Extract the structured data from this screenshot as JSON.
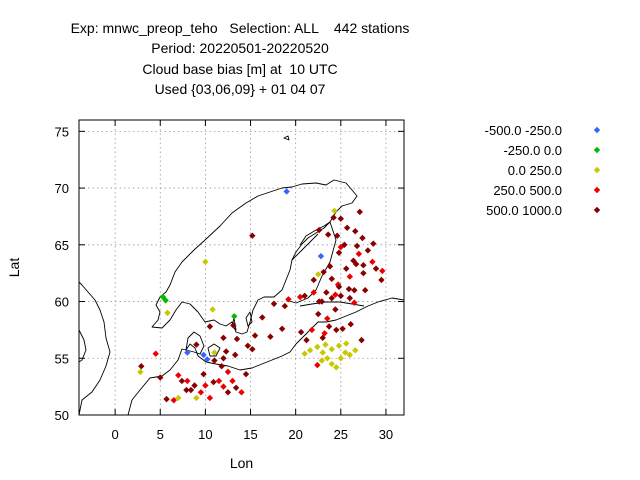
{
  "titles": [
    "Exp: mnwc_preop_teho   Selection: ALL    442 stations",
    "Period: 20220501-20220520",
    "Cloud base bias [m] at  10 UTC",
    "Used {03,06,09} + 01 04 07"
  ],
  "chart_data": {
    "type": "scatter",
    "xlabel": "Lon",
    "ylabel": "Lat",
    "xlim": [
      -4,
      32
    ],
    "ylim": [
      50,
      76
    ],
    "x_ticks": [
      0,
      5,
      10,
      15,
      20,
      25,
      30
    ],
    "y_ticks": [
      50,
      55,
      60,
      65,
      70,
      75
    ],
    "grid": true,
    "legend_position": "right",
    "series": [
      {
        "name": "-500.0 -250.0",
        "color": "#3366ff",
        "points": [
          [
            19.0,
            69.7
          ],
          [
            8.0,
            55.5
          ],
          [
            9.8,
            55.3
          ],
          [
            10.2,
            54.9
          ],
          [
            22.8,
            64.0
          ]
        ]
      },
      {
        "name": "-250.0 0.0",
        "color": "#00bb00",
        "points": [
          [
            5.3,
            60.4
          ],
          [
            5.6,
            60.1
          ],
          [
            13.2,
            58.7
          ]
        ]
      },
      {
        "name": "0.0 250.0",
        "color": "#c8c800",
        "points": [
          [
            2.8,
            53.8
          ],
          [
            5.8,
            59.0
          ],
          [
            10.0,
            63.5
          ],
          [
            10.8,
            59.3
          ],
          [
            11.0,
            55.5
          ],
          [
            7.0,
            51.5
          ],
          [
            9.0,
            51.5
          ],
          [
            21.0,
            55.4
          ],
          [
            21.6,
            55.7
          ],
          [
            22.5,
            62.4
          ],
          [
            24.3,
            68.0
          ],
          [
            23.0,
            55.5
          ],
          [
            23.5,
            55.0
          ],
          [
            24.0,
            54.5
          ],
          [
            24.5,
            54.2
          ],
          [
            25.0,
            55.0
          ],
          [
            25.5,
            55.5
          ],
          [
            24.0,
            55.8
          ],
          [
            24.8,
            56.1
          ],
          [
            26.0,
            55.3
          ],
          [
            26.6,
            55.7
          ],
          [
            22.4,
            56.0
          ],
          [
            23.3,
            56.2
          ],
          [
            25.6,
            56.3
          ],
          [
            22.9,
            54.8
          ]
        ]
      },
      {
        "name": "250.0 500.0",
        "color": "#ee0000",
        "points": [
          [
            4.5,
            55.4
          ],
          [
            7.0,
            53.5
          ],
          [
            9.5,
            52.0
          ],
          [
            10.5,
            51.5
          ],
          [
            11.5,
            53.0
          ],
          [
            12.0,
            52.5
          ],
          [
            13.0,
            53.0
          ],
          [
            14.0,
            52.0
          ],
          [
            6.5,
            51.3
          ],
          [
            8.0,
            53.0
          ],
          [
            10.0,
            52.6
          ],
          [
            12.5,
            53.8
          ],
          [
            19.2,
            60.2
          ],
          [
            21.8,
            57.5
          ],
          [
            23.5,
            58.5
          ],
          [
            26.0,
            62.2
          ],
          [
            27.0,
            64.2
          ],
          [
            29.6,
            62.7
          ],
          [
            24.7,
            61.5
          ],
          [
            22.0,
            60.8
          ],
          [
            23.2,
            57.2
          ],
          [
            28.5,
            63.5
          ],
          [
            26.5,
            59.9
          ],
          [
            25.0,
            64.8
          ],
          [
            24.4,
            60.6
          ],
          [
            20.5,
            60.4
          ],
          [
            22.4,
            54.4
          ]
        ]
      },
      {
        "name": "500.0 1000.0",
        "color": "#880000",
        "points": [
          [
            2.9,
            54.3
          ],
          [
            5.0,
            53.3
          ],
          [
            5.7,
            51.4
          ],
          [
            7.4,
            53.0
          ],
          [
            7.9,
            52.2
          ],
          [
            8.8,
            52.6
          ],
          [
            9.8,
            53.6
          ],
          [
            10.9,
            52.9
          ],
          [
            11.8,
            54.3
          ],
          [
            12.5,
            52.0
          ],
          [
            13.4,
            52.4
          ],
          [
            14.5,
            53.6
          ],
          [
            15.2,
            55.8
          ],
          [
            15.5,
            57.0
          ],
          [
            15.2,
            65.8
          ],
          [
            10.5,
            57.8
          ],
          [
            12.0,
            56.8
          ],
          [
            12.3,
            55.6
          ],
          [
            13.3,
            55.3
          ],
          [
            13.5,
            56.7
          ],
          [
            9.0,
            56.2
          ],
          [
            8.4,
            52.2
          ],
          [
            21.0,
            60.5
          ],
          [
            22.0,
            61.9
          ],
          [
            22.6,
            60.0
          ],
          [
            23.4,
            60.8
          ],
          [
            24.0,
            60.3
          ],
          [
            25.0,
            60.5
          ],
          [
            25.9,
            61.1
          ],
          [
            26.5,
            61.0
          ],
          [
            27.7,
            61.0
          ],
          [
            27.5,
            62.5
          ],
          [
            28.9,
            62.9
          ],
          [
            29.5,
            61.9
          ],
          [
            28.0,
            64.5
          ],
          [
            27.4,
            65.6
          ],
          [
            26.6,
            66.2
          ],
          [
            25.7,
            66.5
          ],
          [
            25.4,
            65.0
          ],
          [
            24.6,
            65.8
          ],
          [
            23.6,
            65.9
          ],
          [
            24.8,
            64.3
          ],
          [
            26.4,
            63.6
          ],
          [
            25.6,
            62.9
          ],
          [
            23.8,
            63.1
          ],
          [
            23.1,
            62.6
          ],
          [
            24.0,
            62.0
          ],
          [
            22.6,
            66.3
          ],
          [
            25.0,
            67.3
          ],
          [
            27.1,
            67.9
          ],
          [
            26.7,
            63.3
          ],
          [
            27.5,
            63.2
          ],
          [
            24.8,
            61.3
          ],
          [
            26.0,
            60.3
          ],
          [
            22.9,
            60.0
          ],
          [
            24.4,
            59.3
          ],
          [
            22.5,
            58.9
          ],
          [
            23.7,
            57.8
          ],
          [
            24.5,
            57.5
          ],
          [
            25.2,
            57.6
          ],
          [
            23.0,
            56.8
          ],
          [
            21.2,
            56.6
          ],
          [
            20.6,
            57.3
          ],
          [
            18.5,
            57.6
          ],
          [
            17.2,
            56.9
          ],
          [
            18.8,
            59.6
          ],
          [
            17.6,
            59.8
          ],
          [
            16.3,
            58.6
          ],
          [
            14.7,
            56.1
          ],
          [
            13.1,
            57.9
          ],
          [
            11.0,
            54.8
          ],
          [
            12.0,
            55.0
          ],
          [
            26.1,
            58.0
          ],
          [
            27.3,
            56.6
          ],
          [
            24.2,
            67.4
          ],
          [
            26.8,
            64.9
          ],
          [
            28.6,
            65.1
          ]
        ]
      }
    ]
  }
}
